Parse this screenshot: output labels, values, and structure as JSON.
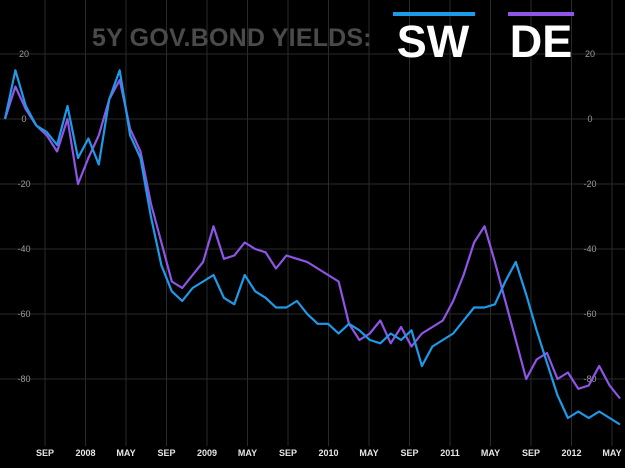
{
  "chart_data": {
    "type": "line",
    "title_prefix": "5Y GOV.BOND YIELDS:",
    "xlabel": "",
    "ylabel": "",
    "ylim": [
      -95,
      22
    ],
    "grid": true,
    "y_ticks": [
      20,
      0,
      -20,
      -40,
      -60,
      -80
    ],
    "x_ticks": [
      "SEP",
      "2008",
      "MAY",
      "SEP",
      "2009",
      "MAY",
      "SEP",
      "2010",
      "MAY",
      "SEP",
      "2011",
      "MAY",
      "SEP",
      "2012",
      "MAY"
    ],
    "x": [
      "2007-06",
      "2007-07",
      "2007-08",
      "2007-09",
      "2007-10",
      "2007-11",
      "2007-12",
      "2008-01",
      "2008-02",
      "2008-03",
      "2008-04",
      "2008-05",
      "2008-06",
      "2008-07",
      "2008-08",
      "2008-09",
      "2008-10",
      "2008-11",
      "2008-12",
      "2009-01",
      "2009-02",
      "2009-03",
      "2009-04",
      "2009-05",
      "2009-06",
      "2009-07",
      "2009-08",
      "2009-09",
      "2009-10",
      "2009-11",
      "2009-12",
      "2010-01",
      "2010-02",
      "2010-03",
      "2010-04",
      "2010-05",
      "2010-06",
      "2010-07",
      "2010-08",
      "2010-09",
      "2010-10",
      "2010-11",
      "2010-12",
      "2011-01",
      "2011-02",
      "2011-03",
      "2011-04",
      "2011-05",
      "2011-06",
      "2011-07",
      "2011-08",
      "2011-09",
      "2011-10",
      "2011-11",
      "2011-12",
      "2012-01",
      "2012-02",
      "2012-03",
      "2012-04",
      "2012-05"
    ],
    "series": [
      {
        "name": "SW",
        "color": "#1e9be8",
        "values": [
          0,
          15,
          4,
          -2,
          -4,
          -8,
          4,
          -12,
          -6,
          -14,
          6,
          15,
          -5,
          -12,
          -30,
          -45,
          -53,
          -56,
          -52,
          -50,
          -48,
          -55,
          -57,
          -48,
          -53,
          -55,
          -58,
          -58,
          -56,
          -60,
          -63,
          -63,
          -66,
          -63,
          -65,
          -68,
          -69,
          -66,
          -68,
          -65,
          -76,
          -70,
          -68,
          -66,
          -62,
          -58,
          -58,
          -57,
          -50,
          -44,
          -54,
          -65,
          -75,
          -85,
          -92,
          -90,
          -92,
          -90,
          -92,
          -94
        ]
      },
      {
        "name": "DE",
        "color": "#8f55e6",
        "values": [
          0,
          10,
          3,
          -2,
          -5,
          -10,
          0,
          -20,
          -12,
          -5,
          6,
          12,
          -3,
          -10,
          -26,
          -38,
          -50,
          -52,
          -48,
          -44,
          -33,
          -43,
          -42,
          -38,
          -40,
          -41,
          -46,
          -42,
          -43,
          -44,
          -46,
          -48,
          -50,
          -63,
          -68,
          -66,
          -62,
          -69,
          -64,
          -70,
          -66,
          -64,
          -62,
          -56,
          -48,
          -38,
          -33,
          -44,
          -56,
          -68,
          -80,
          -74,
          -72,
          -80,
          -78,
          -83,
          -82,
          -76,
          -82,
          -86
        ]
      }
    ]
  }
}
